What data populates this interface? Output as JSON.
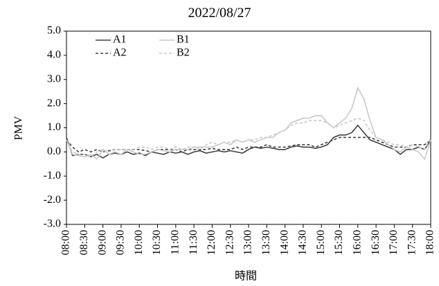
{
  "chart_data": {
    "type": "line",
    "title": "2022/08/27",
    "y_label": "PMV",
    "x_label": "時間",
    "legend": "upper left",
    "grid": false,
    "x": [
      480,
      490,
      500,
      510,
      520,
      530,
      540,
      550,
      560,
      570,
      580,
      590,
      600,
      610,
      620,
      630,
      640,
      650,
      660,
      670,
      680,
      690,
      700,
      710,
      720,
      730,
      740,
      750,
      760,
      770,
      780,
      790,
      800,
      810,
      820,
      830,
      840,
      850,
      860,
      870,
      880,
      890,
      900,
      910,
      920,
      930,
      940,
      950,
      960,
      970,
      980,
      990,
      1000,
      1010,
      1020,
      1030,
      1040,
      1050,
      1060,
      1070,
      1080
    ],
    "xlim": [
      480,
      1080
    ],
    "xticks": [
      {
        "value": 480,
        "label": "08:00"
      },
      {
        "value": 510,
        "label": "08:30"
      },
      {
        "value": 540,
        "label": "09:00"
      },
      {
        "value": 570,
        "label": "09:30"
      },
      {
        "value": 600,
        "label": "10:00"
      },
      {
        "value": 630,
        "label": "10:30"
      },
      {
        "value": 660,
        "label": "11:00"
      },
      {
        "value": 690,
        "label": "11:30"
      },
      {
        "value": 720,
        "label": "12:00"
      },
      {
        "value": 750,
        "label": "12:30"
      },
      {
        "value": 780,
        "label": "13:00"
      },
      {
        "value": 810,
        "label": "13:30"
      },
      {
        "value": 840,
        "label": "14:00"
      },
      {
        "value": 870,
        "label": "14:30"
      },
      {
        "value": 900,
        "label": "15:00"
      },
      {
        "value": 930,
        "label": "15:30"
      },
      {
        "value": 960,
        "label": "16:00"
      },
      {
        "value": 990,
        "label": "16:30"
      },
      {
        "value": 1020,
        "label": "17:00"
      },
      {
        "value": 1050,
        "label": "17:30"
      },
      {
        "value": 1080,
        "label": "18:00"
      }
    ],
    "ylim": [
      -3,
      5
    ],
    "yticks": [
      {
        "value": 5,
        "label": "5.0"
      },
      {
        "value": 4,
        "label": "4.0"
      },
      {
        "value": 3,
        "label": "3.0"
      },
      {
        "value": 2,
        "label": "2.0"
      },
      {
        "value": 1,
        "label": "1.0"
      },
      {
        "value": 0,
        "label": "0.0"
      },
      {
        "value": -1,
        "label": "-1.0"
      },
      {
        "value": -2,
        "label": "-2.0"
      },
      {
        "value": -3,
        "label": "-3.0"
      }
    ],
    "series": [
      {
        "name": "A1",
        "color": "#404040",
        "line_style": "solid",
        "values": [
          0.6,
          -0.15,
          -0.1,
          -0.1,
          -0.2,
          -0.1,
          -0.25,
          -0.1,
          -0.05,
          -0.1,
          0.0,
          -0.1,
          -0.05,
          -0.15,
          0.0,
          -0.05,
          -0.1,
          0.0,
          -0.05,
          0.0,
          -0.1,
          0.0,
          0.05,
          -0.05,
          0.0,
          0.05,
          0.0,
          0.05,
          0.0,
          -0.05,
          0.1,
          0.2,
          0.15,
          0.2,
          0.15,
          0.1,
          0.1,
          0.2,
          0.25,
          0.2,
          0.2,
          0.15,
          0.2,
          0.3,
          0.6,
          0.7,
          0.7,
          0.8,
          1.1,
          0.8,
          0.5,
          0.4,
          0.3,
          0.2,
          0.1,
          -0.1,
          0.1,
          0.1,
          0.2,
          0.1,
          0.5
        ]
      },
      {
        "name": "A2",
        "color": "#404040",
        "line_style": "dashed",
        "values": [
          0.5,
          0.2,
          0.0,
          0.1,
          0.0,
          0.1,
          0.0,
          0.05,
          0.1,
          0.1,
          0.1,
          0.1,
          0.1,
          0.05,
          0.0,
          0.1,
          0.1,
          0.1,
          0.1,
          0.0,
          0.1,
          0.1,
          0.1,
          0.1,
          0.15,
          0.1,
          0.1,
          0.1,
          0.2,
          0.1,
          0.2,
          0.2,
          0.2,
          0.3,
          0.2,
          0.2,
          0.2,
          0.25,
          0.3,
          0.3,
          0.3,
          0.2,
          0.3,
          0.4,
          0.5,
          0.6,
          0.6,
          0.6,
          0.6,
          0.6,
          0.6,
          0.5,
          0.4,
          0.3,
          0.2,
          0.2,
          0.2,
          0.3,
          0.3,
          0.3,
          0.5
        ]
      },
      {
        "name": "B1",
        "color": "#c8c8c8",
        "line_style": "solid",
        "values": [
          0.5,
          -0.1,
          -0.15,
          -0.2,
          -0.1,
          -0.3,
          0.1,
          -0.1,
          0.0,
          -0.1,
          0.1,
          0.0,
          -0.1,
          -0.1,
          0.0,
          0.1,
          0.05,
          0.0,
          0.1,
          0.1,
          0.1,
          0.2,
          0.2,
          0.2,
          0.2,
          0.3,
          0.4,
          0.3,
          0.5,
          0.4,
          0.5,
          0.4,
          0.5,
          0.6,
          0.6,
          0.8,
          0.9,
          1.2,
          1.3,
          1.4,
          1.4,
          1.5,
          1.5,
          1.2,
          1.0,
          1.2,
          1.4,
          1.8,
          2.65,
          2.2,
          1.3,
          0.6,
          0.5,
          0.3,
          0.1,
          0.0,
          0.2,
          0.1,
          0.0,
          -0.3,
          0.5
        ]
      },
      {
        "name": "B2",
        "color": "#c8c8c8",
        "line_style": "dashed",
        "values": [
          0.5,
          0.0,
          -0.1,
          -0.1,
          -0.2,
          0.0,
          0.1,
          0.0,
          0.1,
          0.1,
          0.1,
          0.1,
          0.2,
          0.2,
          0.1,
          0.2,
          0.2,
          0.1,
          0.2,
          0.1,
          0.2,
          0.2,
          0.1,
          0.3,
          0.4,
          0.3,
          0.4,
          0.4,
          0.5,
          0.4,
          0.5,
          0.5,
          0.6,
          0.6,
          0.7,
          0.8,
          0.9,
          1.1,
          1.2,
          1.2,
          1.3,
          1.3,
          1.3,
          1.2,
          1.0,
          1.1,
          1.2,
          1.3,
          1.4,
          1.3,
          0.9,
          0.6,
          0.5,
          0.4,
          0.3,
          0.3,
          0.2,
          0.3,
          0.2,
          0.1,
          0.6
        ]
      }
    ]
  }
}
